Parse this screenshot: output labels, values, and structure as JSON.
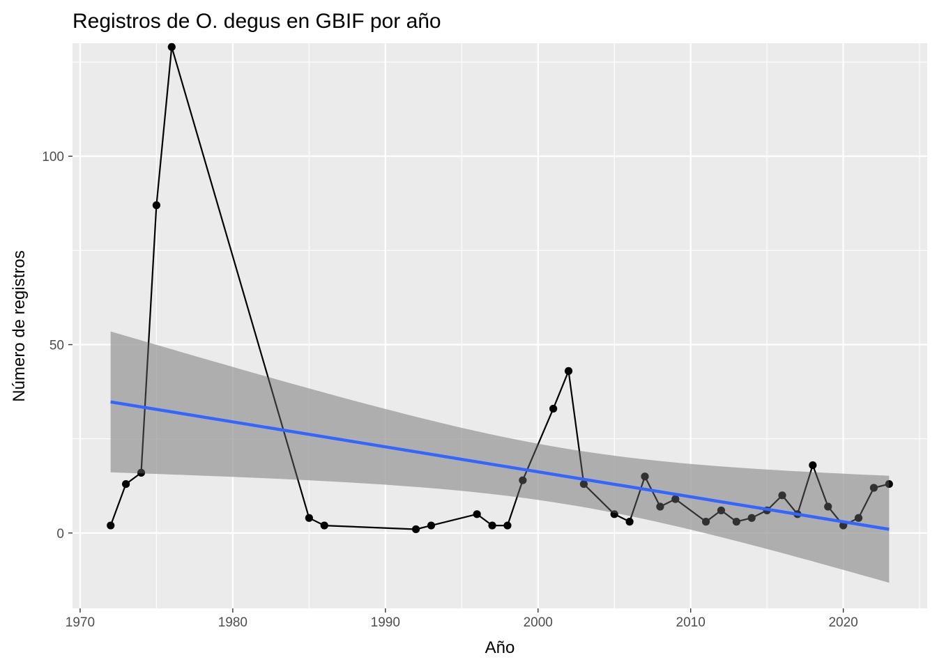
{
  "chart_data": {
    "type": "line",
    "title": "Registros de O. degus en GBIF  por año",
    "xlabel": "Año",
    "ylabel": "Número de registros",
    "xlim": [
      1969.5,
      2025.5
    ],
    "ylim": [
      -20,
      130
    ],
    "x_ticks": [
      1970,
      1980,
      1990,
      2000,
      2010,
      2020
    ],
    "y_ticks": [
      0,
      50,
      100
    ],
    "grid": true,
    "legend": "none",
    "colors": {
      "panel": "#ebebeb",
      "grid": "#ffffff",
      "series": "#000000",
      "trend": "#3366ff",
      "band": "#999999",
      "tick_label": "#4d4d4d"
    },
    "series": [
      {
        "x": [
          1972,
          1973,
          1974,
          1975,
          1976,
          1985,
          1986,
          1992,
          1993,
          1996,
          1997,
          1998,
          1999,
          2001,
          2002,
          2003,
          2005,
          2006,
          2007,
          2008,
          2009,
          2011,
          2012,
          2013,
          2014,
          2015,
          2016,
          2017,
          2018,
          2019,
          2020,
          2021,
          2022,
          2023
        ],
        "values": [
          2,
          13,
          16,
          87,
          129,
          4,
          2,
          1,
          2,
          5,
          2,
          2,
          14,
          33,
          43,
          13,
          5,
          3,
          15,
          7,
          9,
          3,
          6,
          3,
          4,
          6,
          10,
          5,
          18,
          7,
          2,
          4,
          12,
          13
        ]
      }
    ],
    "trend": {
      "x": [
        1972,
        2023
      ],
      "fit": [
        34.8,
        1.0
      ],
      "ci_lower": [
        16.3,
        -13.0
      ],
      "ci_upper": [
        53.5,
        15.2
      ]
    }
  }
}
